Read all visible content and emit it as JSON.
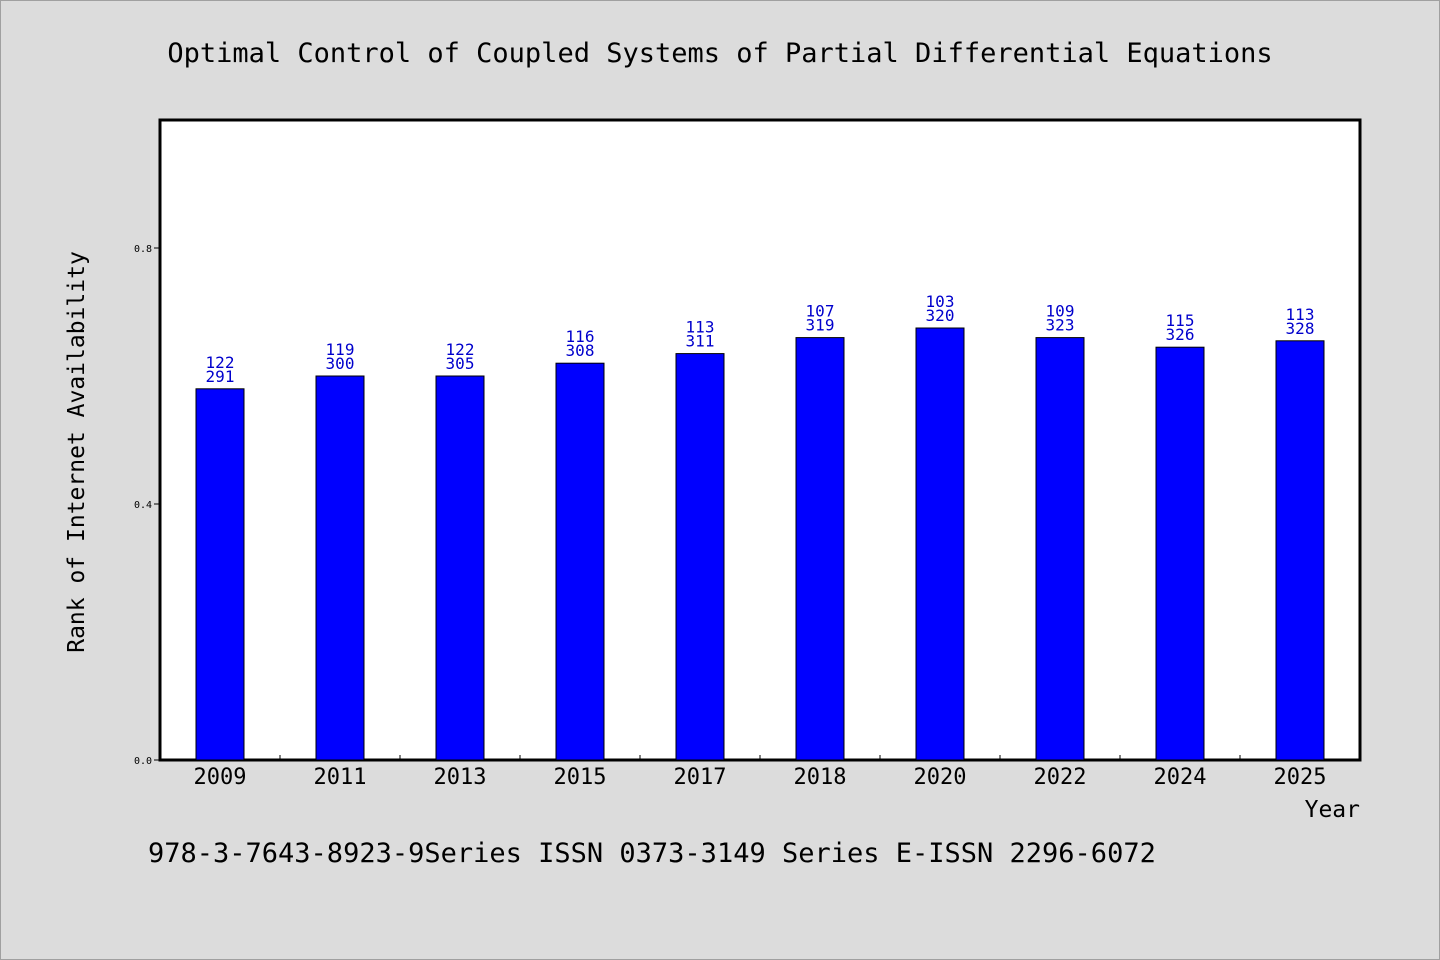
{
  "chart_data": {
    "type": "bar",
    "title": "Optimal Control of Coupled Systems of Partial Differential Equations",
    "xlabel": "Year",
    "ylabel": "Rank of Internet Availability",
    "categories": [
      "2009",
      "2011",
      "2013",
      "2015",
      "2017",
      "2018",
      "2020",
      "2022",
      "2024",
      "2025"
    ],
    "values": [
      0.58,
      0.6,
      0.6,
      0.62,
      0.635,
      0.66,
      0.675,
      0.66,
      0.645,
      0.655
    ],
    "bar_labels_top": [
      "122",
      "119",
      "122",
      "116",
      "113",
      "107",
      "103",
      "109",
      "115",
      "113"
    ],
    "bar_labels_bottom": [
      "291",
      "300",
      "305",
      "308",
      "311",
      "319",
      "320",
      "323",
      "326",
      "328"
    ],
    "ylim": [
      0,
      1.0
    ],
    "yticks": [
      0.0,
      0.4,
      0.8
    ],
    "ytick_labels": [
      "0.0",
      "0.4",
      "0.8"
    ],
    "grid": false,
    "bar_color": "#0000ff",
    "label_color": "#0000cc"
  },
  "footer": "978-3-7643-8923-9Series ISSN 0373-3149 Series E-ISSN 2296-6072"
}
